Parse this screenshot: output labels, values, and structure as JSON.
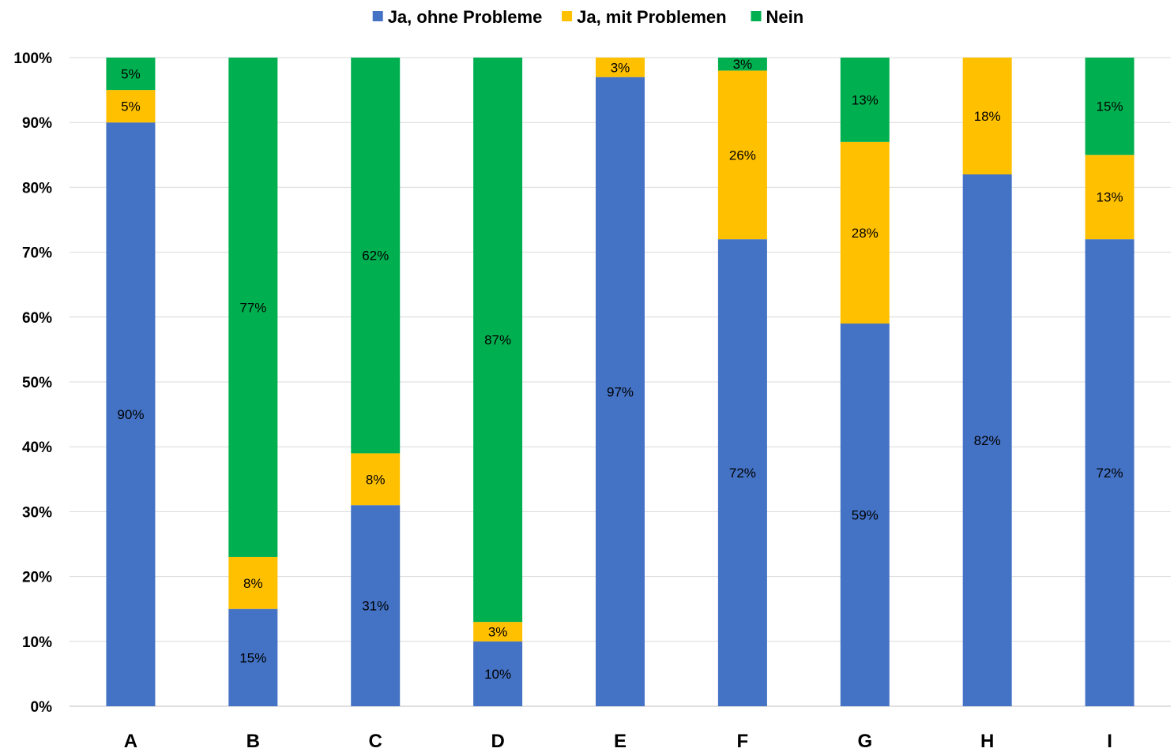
{
  "chart_data": {
    "type": "bar",
    "stacked": true,
    "categories": [
      "A",
      "B",
      "C",
      "D",
      "E",
      "F",
      "G",
      "H",
      "I"
    ],
    "series": [
      {
        "name": "Ja, ohne Probleme",
        "color": "#4472C4",
        "values": [
          90,
          15,
          31,
          10,
          97,
          72,
          59,
          82,
          72
        ],
        "labels": [
          "90%",
          "15%",
          "31%",
          "10%",
          "97%",
          "72%",
          "59%",
          "82%",
          "72%"
        ]
      },
      {
        "name": "Ja, mit Problemen",
        "color": "#FFC000",
        "values": [
          5,
          8,
          8,
          3,
          3,
          26,
          28,
          18,
          13
        ],
        "labels": [
          "5%",
          "8%",
          "8%",
          "3%",
          "3%",
          "26%",
          "28%",
          "18%",
          "13%"
        ]
      },
      {
        "name": "Nein",
        "color": "#00B050",
        "values": [
          5,
          77,
          62,
          87,
          0,
          3,
          13,
          0,
          15
        ],
        "labels": [
          "5%",
          "77%",
          "62%",
          "87%",
          "",
          "3%",
          "13%",
          "",
          "15%"
        ]
      }
    ],
    "y_ticks": [
      "0%",
      "10%",
      "20%",
      "30%",
      "40%",
      "50%",
      "60%",
      "70%",
      "80%",
      "90%",
      "100%"
    ],
    "ylim": [
      0,
      100
    ],
    "grid": true,
    "legend_position": "top-center"
  }
}
